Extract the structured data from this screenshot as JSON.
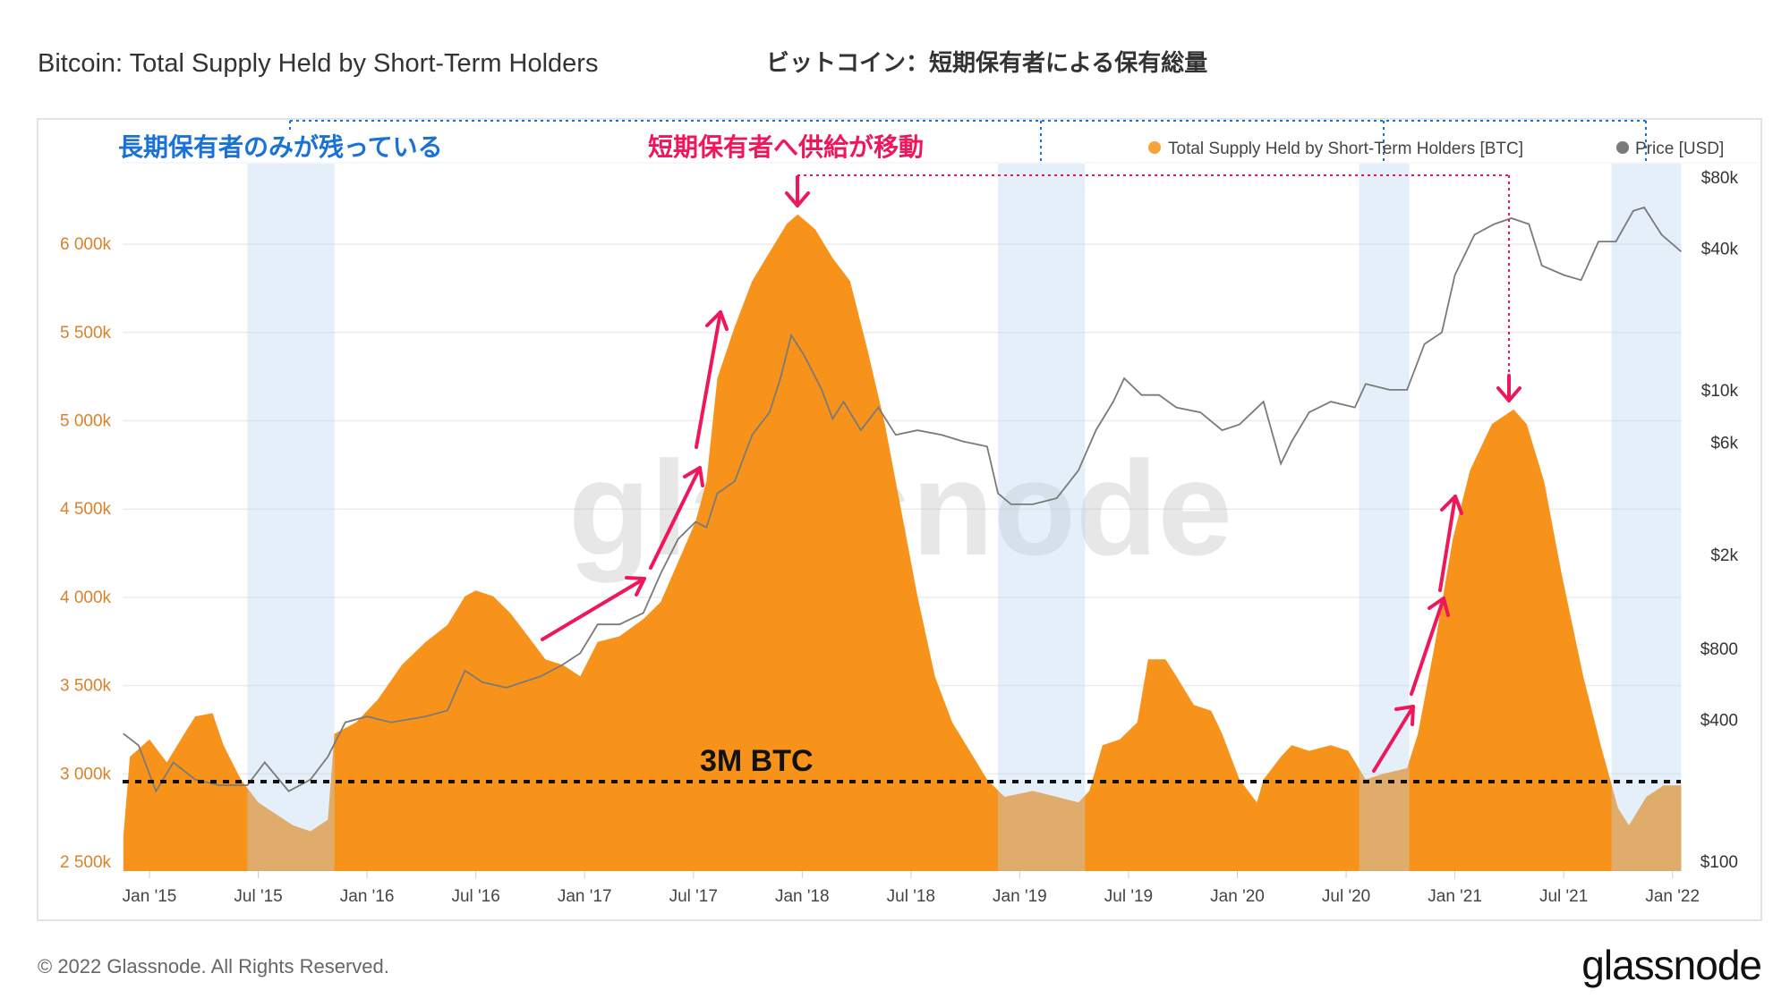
{
  "title": "Bitcoin: Total Supply Held by Short-Term Holders",
  "title_ja": "ビットコイン：短期保有者による保有総量",
  "footer": "© 2022 Glassnode. All Rights Reserved.",
  "brand": "glassnode",
  "watermark": "glassnode",
  "annotations": {
    "lth_only": "長期保有者のみが残っている",
    "supply_shift": "短期保有者へ供給が移動",
    "threshold_label": "3M BTC",
    "threshold_value": 3000
  },
  "colors": {
    "supply": "#f7931a",
    "price": "#7a7a7a",
    "band": "#d6e8f7",
    "blue_note": "#1a72d6",
    "pink_note": "#f0165a"
  },
  "chart_data": {
    "type": "area",
    "title": "Bitcoin: Total Supply Held by Short-Term Holders",
    "legend": [
      {
        "label": "Total Supply Held by Short-Term Holders [BTC]",
        "color": "#f7a33a"
      },
      {
        "label": "Price [USD]",
        "color": "#7a7a7a"
      }
    ],
    "legend_position": "top-right",
    "x_ticks": [
      {
        "t": 2015.0,
        "label": "Jan '15"
      },
      {
        "t": 2015.5,
        "label": "Jul '15"
      },
      {
        "t": 2016.0,
        "label": "Jan '16"
      },
      {
        "t": 2016.5,
        "label": "Jul '16"
      },
      {
        "t": 2017.0,
        "label": "Jan '17"
      },
      {
        "t": 2017.5,
        "label": "Jul '17"
      },
      {
        "t": 2018.0,
        "label": "Jan '18"
      },
      {
        "t": 2018.5,
        "label": "Jul '18"
      },
      {
        "t": 2019.0,
        "label": "Jan '19"
      },
      {
        "t": 2019.5,
        "label": "Jul '19"
      },
      {
        "t": 2020.0,
        "label": "Jan '20"
      },
      {
        "t": 2020.5,
        "label": "Jul '20"
      },
      {
        "t": 2021.0,
        "label": "Jan '21"
      },
      {
        "t": 2021.5,
        "label": "Jul '21"
      },
      {
        "t": 2022.0,
        "label": "Jan '22"
      }
    ],
    "y_left_ticks": [
      {
        "v": 2500,
        "label": "2 500k"
      },
      {
        "v": 3000,
        "label": "3 000k"
      },
      {
        "v": 3500,
        "label": "3 500k"
      },
      {
        "v": 4000,
        "label": "4 000k"
      },
      {
        "v": 4500,
        "label": "4 500k"
      },
      {
        "v": 5000,
        "label": "5 000k"
      },
      {
        "v": 5500,
        "label": "5 500k"
      },
      {
        "v": 6000,
        "label": "6 000k"
      }
    ],
    "y_right_ticks": [
      {
        "v": 100,
        "label": "$100"
      },
      {
        "v": 400,
        "label": "$400"
      },
      {
        "v": 800,
        "label": "$800"
      },
      {
        "v": 2000,
        "label": "$2k"
      },
      {
        "v": 6000,
        "label": "$6k"
      },
      {
        "v": 10000,
        "label": "$10k"
      },
      {
        "v": 40000,
        "label": "$40k"
      },
      {
        "v": 80000,
        "label": "$80k"
      }
    ],
    "y_left_unit": "thousand BTC",
    "y_right_scale": "log",
    "x_range": [
      2014.88,
      2022.04
    ],
    "y_left_range": [
      2450,
      6350
    ],
    "y_right_range": [
      100,
      80000
    ],
    "highlight_periods": [
      [
        2015.45,
        2015.85
      ],
      [
        2018.9,
        2019.3
      ],
      [
        2020.56,
        2020.79
      ],
      [
        2021.72,
        2022.04
      ]
    ],
    "series": [
      {
        "name": "Total Supply Held by Short-Term Holders [BTC]",
        "unit": "thousand BTC",
        "t": [
          2014.88,
          2014.91,
          2015.0,
          2015.08,
          2015.16,
          2015.21,
          2015.29,
          2015.34,
          2015.42,
          2015.5,
          2015.58,
          2015.66,
          2015.74,
          2015.82,
          2015.85,
          2015.95,
          2016.05,
          2016.16,
          2016.27,
          2016.37,
          2016.45,
          2016.5,
          2016.58,
          2016.66,
          2016.74,
          2016.82,
          2016.9,
          2016.98,
          2017.06,
          2017.16,
          2017.27,
          2017.35,
          2017.43,
          2017.51,
          2017.56,
          2017.61,
          2017.69,
          2017.77,
          2017.85,
          2017.93,
          2017.98,
          2018.06,
          2018.14,
          2018.22,
          2018.3,
          2018.38,
          2018.45,
          2018.53,
          2018.61,
          2018.69,
          2018.77,
          2018.85,
          2018.93,
          2019.06,
          2019.17,
          2019.27,
          2019.32,
          2019.38,
          2019.46,
          2019.54,
          2019.59,
          2019.67,
          2019.72,
          2019.8,
          2019.88,
          2019.93,
          2020.01,
          2020.09,
          2020.12,
          2020.2,
          2020.25,
          2020.33,
          2020.43,
          2020.51,
          2020.59,
          2020.67,
          2020.78,
          2020.83,
          2020.91,
          2020.99,
          2021.07,
          2021.17,
          2021.27,
          2021.33,
          2021.41,
          2021.49,
          2021.59,
          2021.67,
          2021.75,
          2021.8,
          2021.88,
          2021.96,
          2022.04
        ],
        "values": [
          2643,
          3097,
          3195,
          3065,
          3227,
          3325,
          3344,
          3162,
          2968,
          2838,
          2773,
          2708,
          2675,
          2740,
          3227,
          3292,
          3422,
          3617,
          3747,
          3844,
          4006,
          4039,
          4006,
          3909,
          3779,
          3649,
          3617,
          3552,
          3747,
          3779,
          3877,
          3974,
          4201,
          4429,
          4656,
          5240,
          5533,
          5792,
          5955,
          6117,
          6169,
          6084,
          5922,
          5792,
          5403,
          4981,
          4526,
          4006,
          3552,
          3292,
          3130,
          2968,
          2870,
          2903,
          2870,
          2838,
          2903,
          3162,
          3195,
          3292,
          3649,
          3649,
          3552,
          3390,
          3357,
          3227,
          2968,
          2838,
          2968,
          3097,
          3162,
          3130,
          3162,
          3130,
          2968,
          3000,
          3032,
          3227,
          3747,
          4331,
          4721,
          4981,
          5065,
          4981,
          4656,
          4136,
          3552,
          3162,
          2805,
          2708,
          2870,
          2935,
          2935
        ]
      },
      {
        "name": "Price [USD]",
        "unit": "USD",
        "t": [
          2014.88,
          2014.95,
          2015.03,
          2015.11,
          2015.21,
          2015.32,
          2015.45,
          2015.53,
          2015.64,
          2015.74,
          2015.82,
          2015.9,
          2016.0,
          2016.11,
          2016.27,
          2016.37,
          2016.45,
          2016.53,
          2016.64,
          2016.8,
          2016.9,
          2016.98,
          2017.06,
          2017.16,
          2017.27,
          2017.35,
          2017.43,
          2017.51,
          2017.56,
          2017.61,
          2017.69,
          2017.77,
          2017.85,
          2017.9,
          2017.95,
          2018.01,
          2018.09,
          2018.14,
          2018.19,
          2018.27,
          2018.35,
          2018.43,
          2018.53,
          2018.64,
          2018.74,
          2018.85,
          2018.9,
          2018.96,
          2019.06,
          2019.17,
          2019.27,
          2019.35,
          2019.43,
          2019.48,
          2019.56,
          2019.64,
          2019.72,
          2019.83,
          2019.93,
          2020.01,
          2020.12,
          2020.2,
          2020.25,
          2020.33,
          2020.43,
          2020.54,
          2020.59,
          2020.7,
          2020.78,
          2020.86,
          2020.94,
          2021.0,
          2021.09,
          2021.18,
          2021.26,
          2021.34,
          2021.4,
          2021.5,
          2021.58,
          2021.66,
          2021.74,
          2021.82,
          2021.87,
          2021.95,
          2022.04
        ],
        "values": [
          351,
          313,
          200,
          265,
          224,
          212,
          212,
          265,
          200,
          224,
          280,
          392,
          415,
          392,
          415,
          440,
          650,
          580,
          550,
          615,
          690,
          770,
          1020,
          1020,
          1140,
          1680,
          2350,
          2780,
          2630,
          3670,
          4130,
          6500,
          8100,
          11300,
          17200,
          14100,
          10100,
          7600,
          9000,
          6800,
          8500,
          6500,
          6800,
          6500,
          6100,
          5800,
          3670,
          3300,
          3300,
          3500,
          4600,
          6800,
          9000,
          11300,
          9600,
          9600,
          8500,
          8100,
          6800,
          7200,
          9000,
          4900,
          6100,
          8100,
          9000,
          8500,
          10700,
          10100,
          10100,
          15800,
          17700,
          31000,
          46000,
          51000,
          54000,
          51000,
          34000,
          31000,
          29500,
          43000,
          43000,
          58000,
          60000,
          46000,
          39000
        ]
      }
    ]
  }
}
